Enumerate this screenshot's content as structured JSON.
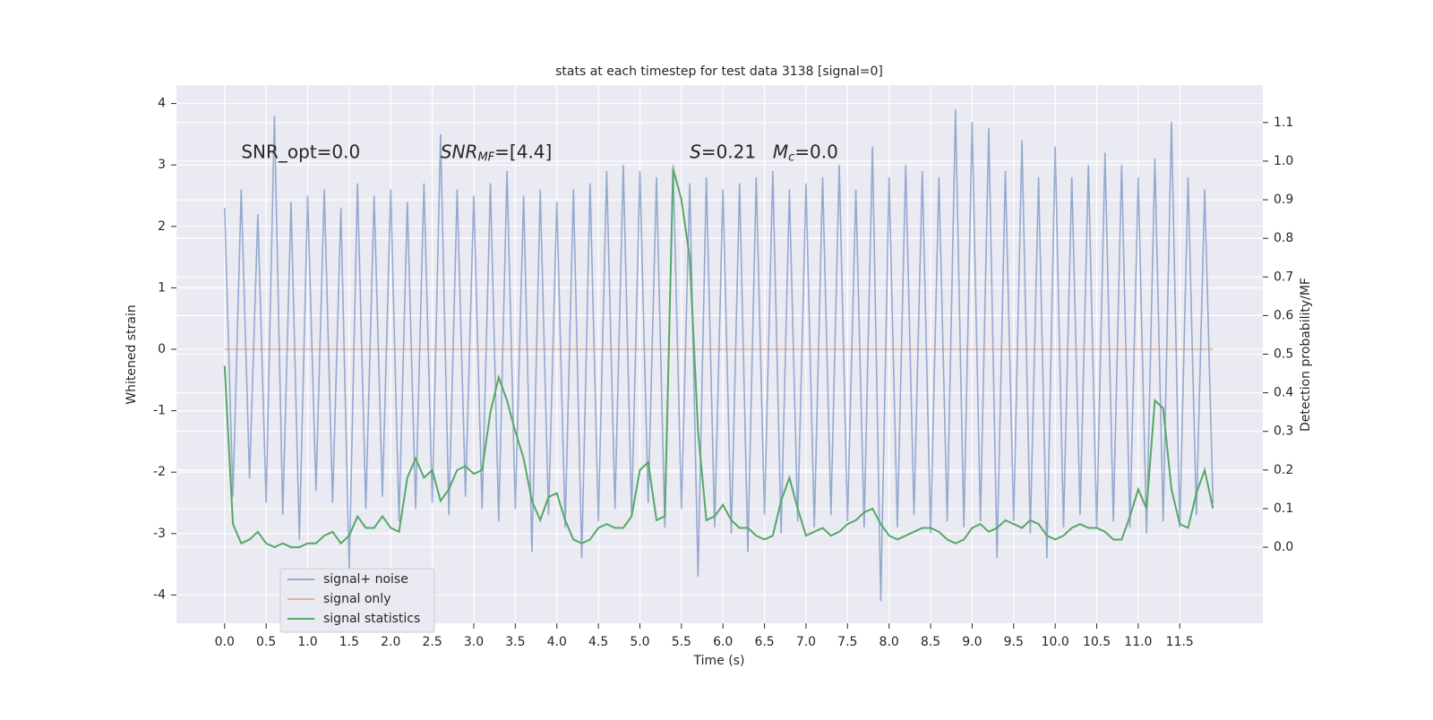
{
  "chart_data": {
    "type": "line",
    "title": "stats at each timestep for test data 3138 [signal=0]",
    "xlabel": "Time (s)",
    "ylabel": "Whitened strain",
    "y2label": "Detection probability/MF",
    "annotations": [
      {
        "text": "SNR_opt=0.0",
        "x": 0.2,
        "y": 3.2
      },
      {
        "symbol": "SNR",
        "subscript": "MF",
        "text": "=[4.4]",
        "x": 2.6,
        "y": 3.2
      },
      {
        "symbol": "S",
        "text": "=0.21",
        "x": 5.6,
        "y": 3.2
      },
      {
        "symbol": "M",
        "subscript": "c",
        "text": "=0.0",
        "x": 6.6,
        "y": 3.2
      }
    ],
    "x": [
      0.0,
      0.1,
      0.2,
      0.3,
      0.4,
      0.5,
      0.6,
      0.7,
      0.8,
      0.9,
      1.0,
      1.1,
      1.2,
      1.3,
      1.4,
      1.5,
      1.6,
      1.7,
      1.8,
      1.9,
      2.0,
      2.1,
      2.2,
      2.3,
      2.4,
      2.5,
      2.6,
      2.7,
      2.8,
      2.9,
      3.0,
      3.1,
      3.2,
      3.3,
      3.4,
      3.5,
      3.6,
      3.7,
      3.8,
      3.9,
      4.0,
      4.1,
      4.2,
      4.3,
      4.4,
      4.5,
      4.6,
      4.7,
      4.8,
      4.9,
      5.0,
      5.1,
      5.2,
      5.3,
      5.4,
      5.5,
      5.6,
      5.7,
      5.8,
      5.9,
      6.0,
      6.1,
      6.2,
      6.3,
      6.4,
      6.5,
      6.6,
      6.7,
      6.8,
      6.9,
      7.0,
      7.1,
      7.2,
      7.3,
      7.4,
      7.5,
      7.6,
      7.7,
      7.8,
      7.9,
      8.0,
      8.1,
      8.2,
      8.3,
      8.4,
      8.5,
      8.6,
      8.7,
      8.8,
      8.9,
      9.0,
      9.1,
      9.2,
      9.3,
      9.4,
      9.5,
      9.6,
      9.7,
      9.8,
      9.9,
      10.0,
      10.1,
      10.2,
      10.3,
      10.4,
      10.5,
      10.6,
      10.7,
      10.8,
      10.9,
      11.0,
      11.1,
      11.2,
      11.3,
      11.4,
      11.5,
      11.6,
      11.7,
      11.8,
      11.9
    ],
    "series": [
      {
        "name": "signal+ noise",
        "color": "#4c72b0",
        "axis": "y",
        "values": [
          2.3,
          -2.4,
          2.6,
          -2.1,
          2.2,
          -2.5,
          3.8,
          -2.7,
          2.4,
          -3.1,
          2.5,
          -2.3,
          2.6,
          -2.5,
          2.3,
          -3.6,
          2.7,
          -2.6,
          2.5,
          -2.4,
          2.6,
          -2.8,
          2.4,
          -2.6,
          2.7,
          -2.5,
          3.5,
          -2.7,
          2.6,
          -2.4,
          2.5,
          -2.6,
          2.7,
          -2.8,
          2.9,
          -2.6,
          2.5,
          -3.3,
          2.6,
          -2.7,
          2.4,
          -2.9,
          2.6,
          -3.4,
          2.7,
          -2.8,
          2.9,
          -2.6,
          3.0,
          -2.7,
          2.9,
          -2.5,
          2.8,
          -2.9,
          3.0,
          -2.6,
          2.7,
          -3.7,
          2.8,
          -2.9,
          2.6,
          -3.0,
          2.7,
          -3.3,
          2.8,
          -2.7,
          2.9,
          -3.0,
          2.6,
          -2.8,
          2.7,
          -2.9,
          2.8,
          -2.7,
          3.0,
          -2.8,
          2.6,
          -2.9,
          3.3,
          -4.1,
          2.8,
          -2.9,
          3.0,
          -2.7,
          2.9,
          -3.0,
          2.8,
          -2.8,
          3.9,
          -2.9,
          3.7,
          -2.8,
          3.6,
          -3.4,
          2.9,
          -2.8,
          3.4,
          -3.0,
          2.8,
          -3.4,
          3.3,
          -2.9,
          2.8,
          -2.7,
          3.0,
          -2.9,
          3.2,
          -2.8,
          3.0,
          -2.9,
          2.8,
          -3.0,
          3.1,
          -2.8,
          3.7,
          -2.9,
          2.8,
          -2.7,
          2.6,
          -2.5
        ]
      },
      {
        "name": "signal only",
        "color": "#dd8452",
        "axis": "y",
        "values": [
          0,
          0,
          0,
          0,
          0,
          0,
          0,
          0,
          0,
          0,
          0,
          0,
          0,
          0,
          0,
          0,
          0,
          0,
          0,
          0,
          0,
          0,
          0,
          0,
          0,
          0,
          0,
          0,
          0,
          0,
          0,
          0,
          0,
          0,
          0,
          0,
          0,
          0,
          0,
          0,
          0,
          0,
          0,
          0,
          0,
          0,
          0,
          0,
          0,
          0,
          0,
          0,
          0,
          0,
          0,
          0,
          0,
          0,
          0,
          0,
          0,
          0,
          0,
          0,
          0,
          0,
          0,
          0,
          0,
          0,
          0,
          0,
          0,
          0,
          0,
          0,
          0,
          0,
          0,
          0,
          0,
          0,
          0,
          0,
          0,
          0,
          0,
          0,
          0,
          0,
          0,
          0,
          0,
          0,
          0,
          0,
          0,
          0,
          0,
          0,
          0,
          0,
          0,
          0,
          0,
          0,
          0,
          0,
          0,
          0,
          0,
          0,
          0,
          0,
          0,
          0,
          0,
          0,
          0,
          0
        ]
      },
      {
        "name": "signal statistics",
        "color": "#55a868",
        "axis": "y2",
        "values": [
          0.47,
          0.06,
          0.01,
          0.02,
          0.04,
          0.01,
          0.0,
          0.01,
          0.0,
          0.0,
          0.01,
          0.01,
          0.03,
          0.04,
          0.01,
          0.03,
          0.08,
          0.05,
          0.05,
          0.08,
          0.05,
          0.04,
          0.18,
          0.23,
          0.18,
          0.2,
          0.12,
          0.15,
          0.2,
          0.21,
          0.19,
          0.2,
          0.35,
          0.44,
          0.38,
          0.3,
          0.23,
          0.12,
          0.07,
          0.13,
          0.14,
          0.07,
          0.02,
          0.01,
          0.02,
          0.05,
          0.06,
          0.05,
          0.05,
          0.08,
          0.2,
          0.22,
          0.07,
          0.08,
          0.98,
          0.9,
          0.75,
          0.3,
          0.07,
          0.08,
          0.11,
          0.07,
          0.05,
          0.05,
          0.03,
          0.02,
          0.03,
          0.12,
          0.18,
          0.1,
          0.03,
          0.04,
          0.05,
          0.03,
          0.04,
          0.06,
          0.07,
          0.09,
          0.1,
          0.06,
          0.03,
          0.02,
          0.03,
          0.04,
          0.05,
          0.05,
          0.04,
          0.02,
          0.01,
          0.02,
          0.05,
          0.06,
          0.04,
          0.05,
          0.07,
          0.06,
          0.05,
          0.07,
          0.06,
          0.03,
          0.02,
          0.03,
          0.05,
          0.06,
          0.05,
          0.05,
          0.04,
          0.02,
          0.02,
          0.08,
          0.15,
          0.1,
          0.38,
          0.36,
          0.15,
          0.06,
          0.05,
          0.14,
          0.2,
          0.1
        ]
      }
    ],
    "xlim": [
      -0.58,
      12.5
    ],
    "ylim": [
      -4.46,
      4.3
    ],
    "y2lim": [
      -0.197,
      1.197
    ],
    "xticks": [
      {
        "value": 0,
        "label": "0.0"
      },
      0.5,
      {
        "value": 1,
        "label": "1.0"
      },
      1.5,
      {
        "value": 2,
        "label": "2.0"
      },
      2.5,
      {
        "value": 3,
        "label": "3.0"
      },
      3.5,
      {
        "value": 4,
        "label": "4.0"
      },
      4.5,
      {
        "value": 5,
        "label": "5.0"
      },
      5.5,
      {
        "value": 6,
        "label": "6.0"
      },
      6.5,
      {
        "value": 7,
        "label": "7.0"
      },
      7.5,
      {
        "value": 8,
        "label": "8.0"
      },
      8.5,
      {
        "value": 9,
        "label": "9.0"
      },
      9.5,
      {
        "value": 10,
        "label": "10.0"
      },
      10.5,
      {
        "value": 11,
        "label": "11.0"
      },
      11.5
    ],
    "yticks": [
      -4,
      -3,
      -2,
      -1,
      0,
      1,
      2,
      3,
      4
    ],
    "y2ticks": [
      {
        "value": 0,
        "label": "0.0"
      },
      0.1,
      0.2,
      0.3,
      0.4,
      0.5,
      0.6,
      0.7,
      0.8,
      0.9,
      {
        "value": 1,
        "label": "1.0"
      },
      1.1
    ],
    "grid": true,
    "legend": "lower left"
  }
}
